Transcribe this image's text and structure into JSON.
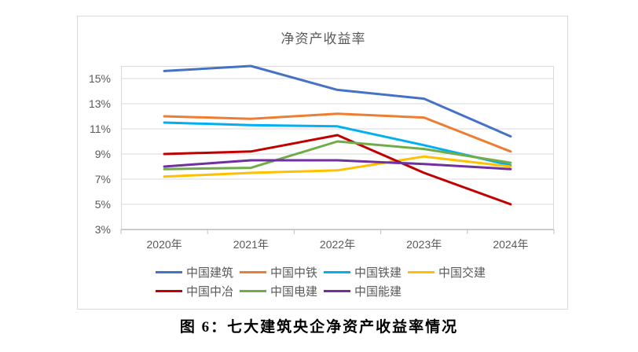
{
  "chart": {
    "title": "净资产收益率",
    "caption": "图 6：七大建筑央企净资产收益率情况"
  },
  "chart_data": {
    "type": "line",
    "title": "净资产收益率",
    "categories": [
      "2020年",
      "2021年",
      "2022年",
      "2023年",
      "2024年"
    ],
    "unit": "%",
    "ylim": [
      3,
      16
    ],
    "y_ticks": [
      {
        "value": 15,
        "label": "15%"
      },
      {
        "value": 13,
        "label": "13%"
      },
      {
        "value": 11,
        "label": "11%"
      },
      {
        "value": 9,
        "label": "9%"
      },
      {
        "value": 7,
        "label": "7%"
      },
      {
        "value": 5,
        "label": "5%"
      },
      {
        "value": 3,
        "label": "3%"
      }
    ],
    "grid": true,
    "legend_position": "bottom",
    "series": [
      {
        "name": "中国建筑",
        "color": "#4472C4",
        "values": [
          15.6,
          16.0,
          14.1,
          13.4,
          10.4
        ]
      },
      {
        "name": "中国中铁",
        "color": "#ED7D31",
        "values": [
          12.0,
          11.8,
          12.2,
          11.9,
          9.2
        ]
      },
      {
        "name": "中国铁建",
        "color": "#00B0F0",
        "values": [
          11.5,
          11.3,
          11.2,
          9.7,
          8.1
        ]
      },
      {
        "name": "中国交建",
        "color": "#FFC000",
        "values": [
          7.2,
          7.5,
          7.7,
          8.8,
          8.0
        ]
      },
      {
        "name": "中国中冶",
        "color": "#C00000",
        "values": [
          9.0,
          9.2,
          10.5,
          7.5,
          5.0
        ]
      },
      {
        "name": "中国电建",
        "color": "#70AD47",
        "values": [
          7.8,
          7.9,
          10.0,
          9.4,
          8.3
        ]
      },
      {
        "name": "中国能建",
        "color": "#7030A0",
        "values": [
          8.0,
          8.5,
          8.5,
          8.2,
          7.8
        ]
      }
    ],
    "colors": {
      "gridline": "#D9D9D9",
      "plot_border": "#D9D9D9",
      "axis_line": "#BFBFBF",
      "axis_text": "#595959",
      "title_text": "#595959"
    }
  }
}
